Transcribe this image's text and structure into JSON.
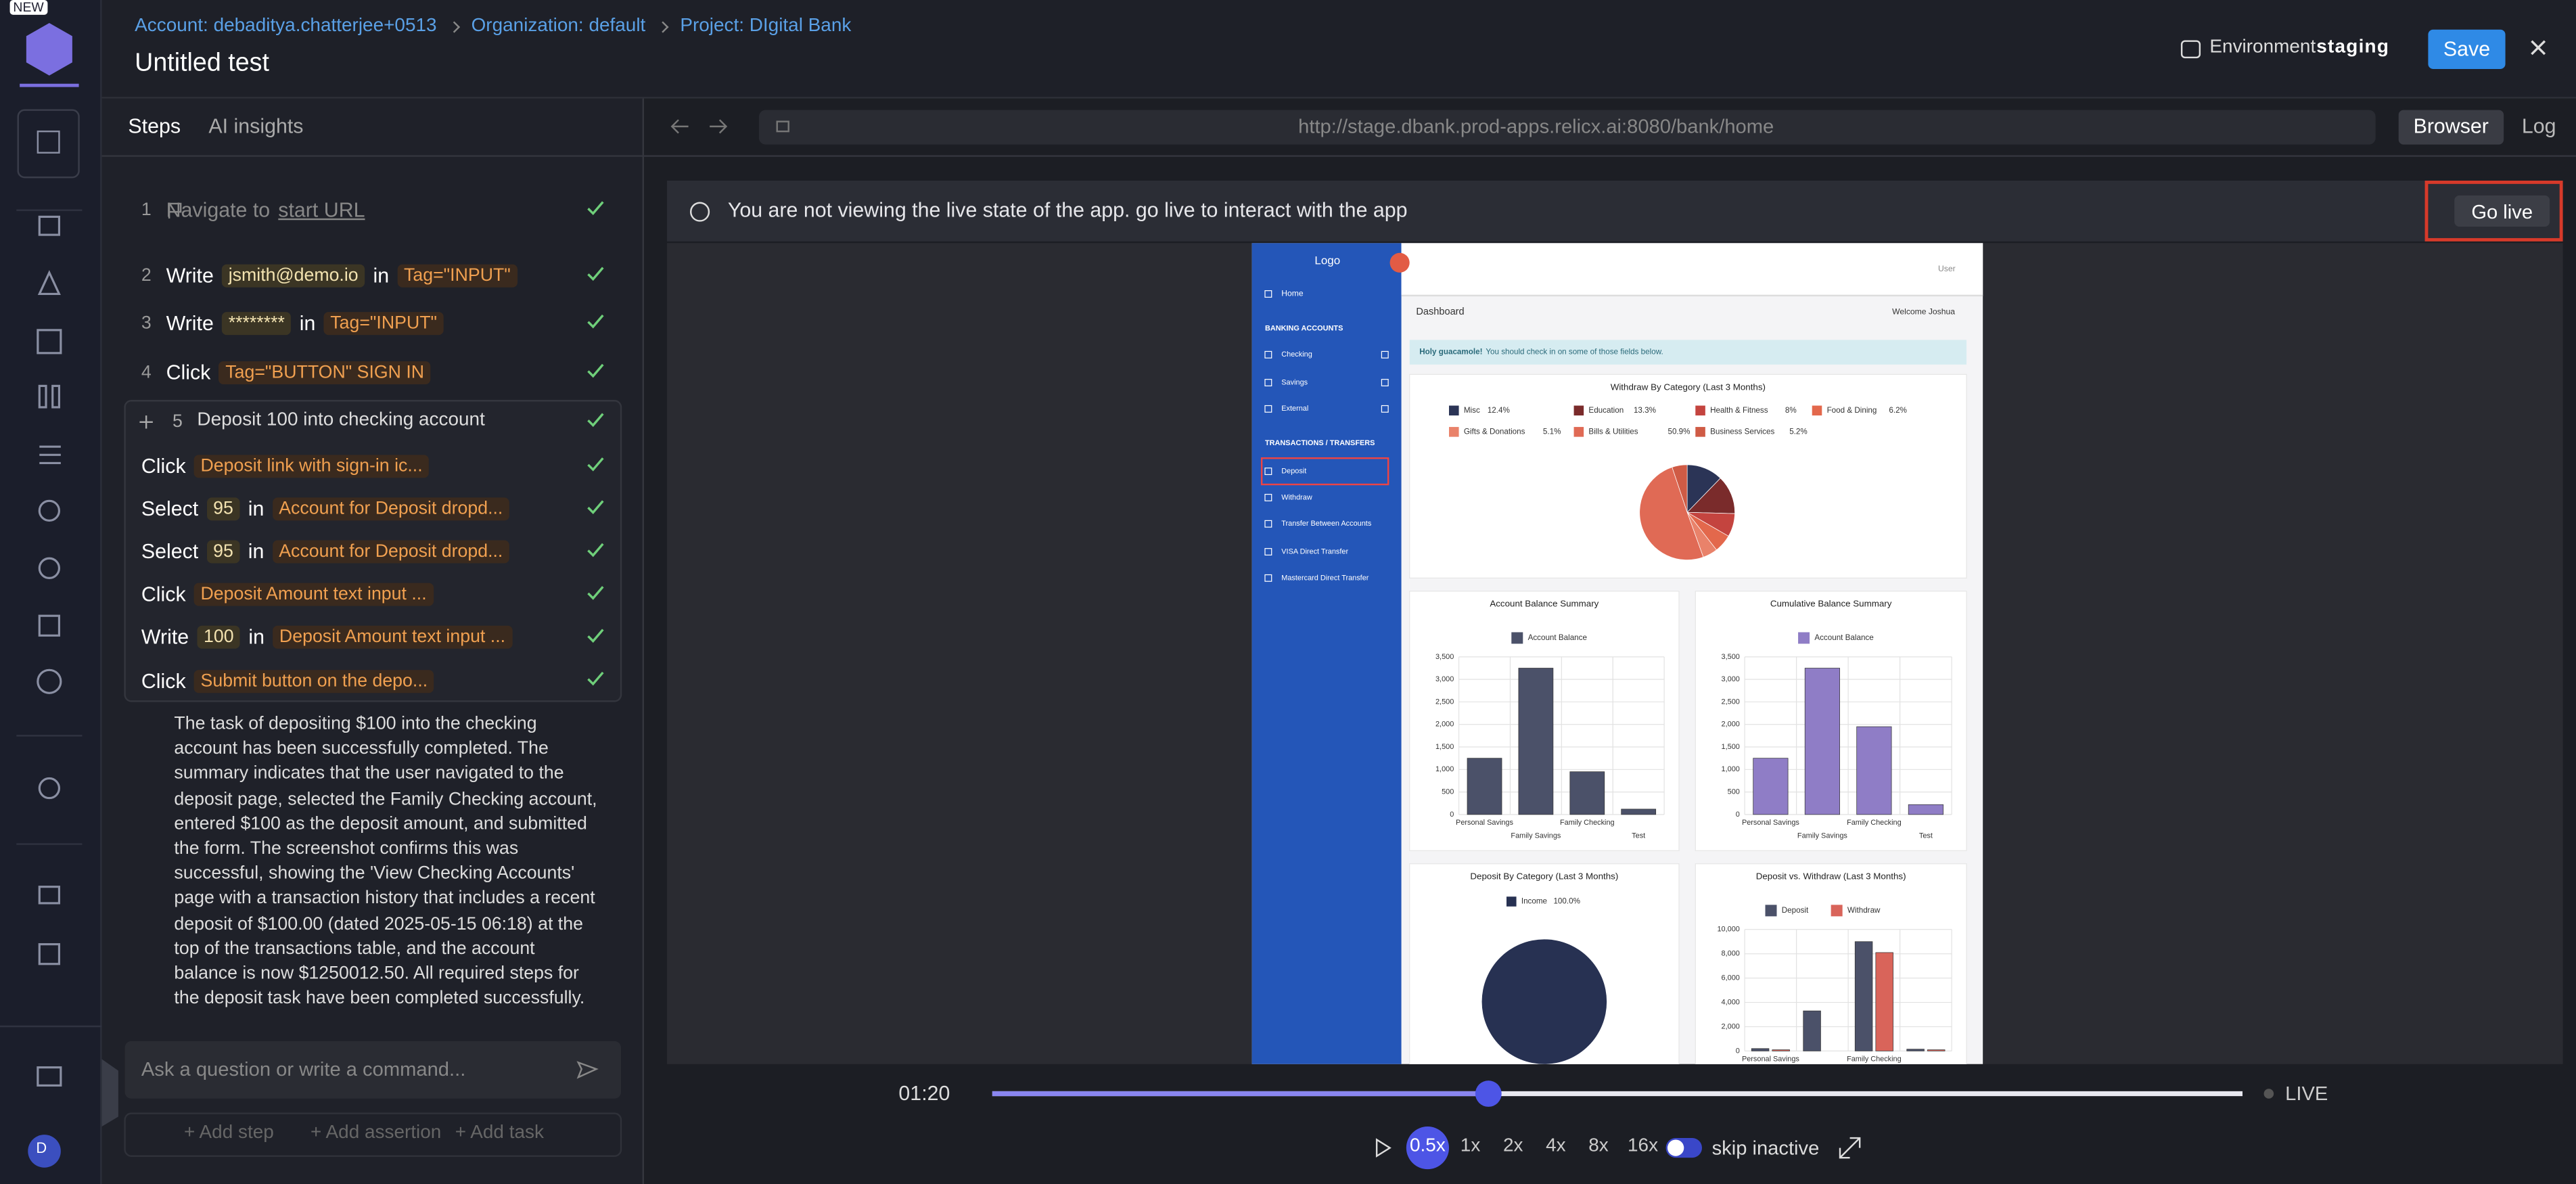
{
  "badge": "NEW",
  "header": {
    "breadcrumbs": [
      "Account: debaditya.chatterjee+0513",
      "Organization: default",
      "Project: DIgital Bank"
    ],
    "title": "Untitled test",
    "environment_label": "Environment",
    "environment": "staging",
    "save": "Save"
  },
  "panel_tabs": [
    "Steps",
    "AI insights"
  ],
  "steps": [
    {
      "number": 1,
      "action": "Navigate to",
      "link": "start URL"
    },
    {
      "number": 2,
      "action": "Write",
      "value": "jsmith@demo.io",
      "connector": "in",
      "target": "Tag=\"INPUT\""
    },
    {
      "number": 3,
      "action": "Write",
      "value": "********",
      "connector": "in",
      "target": "Tag=\"INPUT\""
    },
    {
      "number": 4,
      "action": "Click",
      "target": "Tag=\"BUTTON\" SIGN IN"
    }
  ],
  "task": {
    "number": 5,
    "title": "Deposit 100 into checking account",
    "steps": [
      {
        "action": "Click",
        "target": "Deposit link with sign-in ic..."
      },
      {
        "action": "Select",
        "value": "95",
        "connector": "in",
        "target": "Account for Deposit dropd..."
      },
      {
        "action": "Select",
        "value": "95",
        "connector": "in",
        "target": "Account for Deposit dropd..."
      },
      {
        "action": "Click",
        "target": "Deposit Amount text input ..."
      },
      {
        "action": "Write",
        "value": "100",
        "connector": "in",
        "target": "Deposit Amount text input ..."
      },
      {
        "action": "Click",
        "target": "Submit button on the depo..."
      }
    ]
  },
  "summary": "The task of depositing $100 into the checking account has been successfully completed. The summary indicates that the user navigated to the deposit page, selected the Family Checking account, entered $100 as the deposit amount, and submitted the form. The screenshot confirms this was successful, showing the 'View Checking Accounts' page with a transaction history that includes a recent deposit of $100.00 (dated 2025-05-15 06:18) at the top of the transactions table, and the account balance is now $1250012.50. All required steps for the deposit task have been completed successfully.",
  "composer": {
    "placeholder": "Ask a question or write a command...",
    "actions": [
      "+ Add step",
      "+ Add assertion",
      "+ Add task"
    ]
  },
  "avatar": "D",
  "browser": {
    "url": "http://stage.dbank.prod-apps.relicx.ai:8080/bank/home",
    "tabs": [
      "Browser",
      "Log"
    ],
    "notice": "You are not viewing the live state of the app. go live to interact with the app",
    "go_live": "Go live"
  },
  "player": {
    "time": "01:20",
    "live": "LIVE",
    "speeds": [
      "0.5x",
      "1x",
      "2x",
      "4x",
      "8x",
      "16x"
    ],
    "selected_speed": "0.5x",
    "skip_inactive": "skip inactive"
  },
  "app": {
    "logo": "Logo",
    "user": "User",
    "home": "Home",
    "sections": [
      {
        "title": "BANKING ACCOUNTS",
        "items": [
          "Checking",
          "Savings",
          "External"
        ]
      },
      {
        "title": "TRANSACTIONS / TRANSFERS",
        "items": [
          "Deposit",
          "Withdraw",
          "Transfer Between Accounts",
          "VISA Direct Transfer",
          "Mastercard Direct Transfer"
        ]
      }
    ],
    "page_title": "Dashboard",
    "welcome": "Welcome Joshua",
    "alert": {
      "strong": "Holy guacamole!",
      "text": "You should check in on some of those fields below."
    },
    "charts": [
      {
        "type": "pie",
        "title": "Withdraw By Category (Last 3 Months)",
        "categories": [
          "Misc",
          "Education",
          "Health & Fitness",
          "Food & Dining",
          "Gifts & Donations",
          "Bills & Utilities",
          "Business Services"
        ],
        "values": [
          12.4,
          13.3,
          8,
          6.2,
          5.1,
          50.9,
          5.2
        ],
        "value_labels": [
          "12.4%",
          "13.3%",
          "8%",
          "6.2%",
          "5.1%",
          "50.9%",
          "5.2%"
        ],
        "colors": [
          "#2b3456",
          "#7a2b2b",
          "#c4443f",
          "#e3684c",
          "#e9826a",
          "#e06a55",
          "#cf5b45"
        ]
      },
      {
        "type": "bar",
        "title": "Account Balance Summary",
        "categories": [
          "Personal Savings",
          "Family Savings",
          "Family Checking",
          "Test"
        ],
        "series": [
          {
            "name": "Account Balance",
            "color": "#4b5169",
            "values": [
              1250,
              3250,
              950,
              120
            ]
          }
        ],
        "ylim": [
          0,
          3500
        ],
        "yticks": [
          0,
          500,
          {
            "value": 1000,
            "label": "1,000"
          },
          {
            "value": 1500,
            "label": "1,500"
          },
          {
            "value": 2000,
            "label": "2,000"
          },
          {
            "value": 2500,
            "label": "2,500"
          },
          {
            "value": 3000,
            "label": "3,000"
          },
          {
            "value": 3500,
            "label": "3,500"
          }
        ],
        "grid": true
      },
      {
        "type": "bar",
        "title": "Cumulative Balance Summary",
        "categories": [
          "Personal Savings",
          "Family Savings",
          "Family Checking",
          "Test"
        ],
        "series": [
          {
            "name": "Account Balance",
            "color": "#8f7dc6",
            "values": [
              1250,
              3250,
              1950,
              220
            ]
          }
        ],
        "ylim": [
          0,
          3500
        ],
        "yticks": [
          0,
          500,
          {
            "value": 1000,
            "label": "1,000"
          },
          {
            "value": 1500,
            "label": "1,500"
          },
          {
            "value": 2000,
            "label": "2,000"
          },
          {
            "value": 2500,
            "label": "2,500"
          },
          {
            "value": 3000,
            "label": "3,000"
          },
          {
            "value": 3500,
            "label": "3,500"
          }
        ],
        "grid": true
      },
      {
        "type": "pie",
        "title": "Deposit By Category (Last 3 Months)",
        "categories": [
          "Income"
        ],
        "values": [
          100
        ],
        "value_labels": [
          "100.0%"
        ],
        "colors": [
          "#273152"
        ]
      },
      {
        "type": "bar",
        "title": "Deposit vs. Withdraw (Last 3 Months)",
        "categories": [
          "Personal Savings",
          null,
          "Family Checking",
          null
        ],
        "series": [
          {
            "name": "Deposit",
            "color": "#4b5169",
            "values": [
              200,
              3300,
              9000,
              150
            ]
          },
          {
            "name": "Withdraw",
            "color": "#d9645a",
            "values": [
              100,
              0,
              8100,
              100
            ]
          }
        ],
        "ylim": [
          0,
          10000
        ],
        "yticks": [
          0,
          {
            "value": 2000,
            "label": "2,000"
          },
          {
            "value": 4000,
            "label": "4,000"
          },
          {
            "value": 6000,
            "label": "6,000"
          },
          {
            "value": 8000,
            "label": "8,000"
          },
          {
            "value": 10000,
            "label": "10,000"
          }
        ],
        "grid": true
      }
    ]
  }
}
